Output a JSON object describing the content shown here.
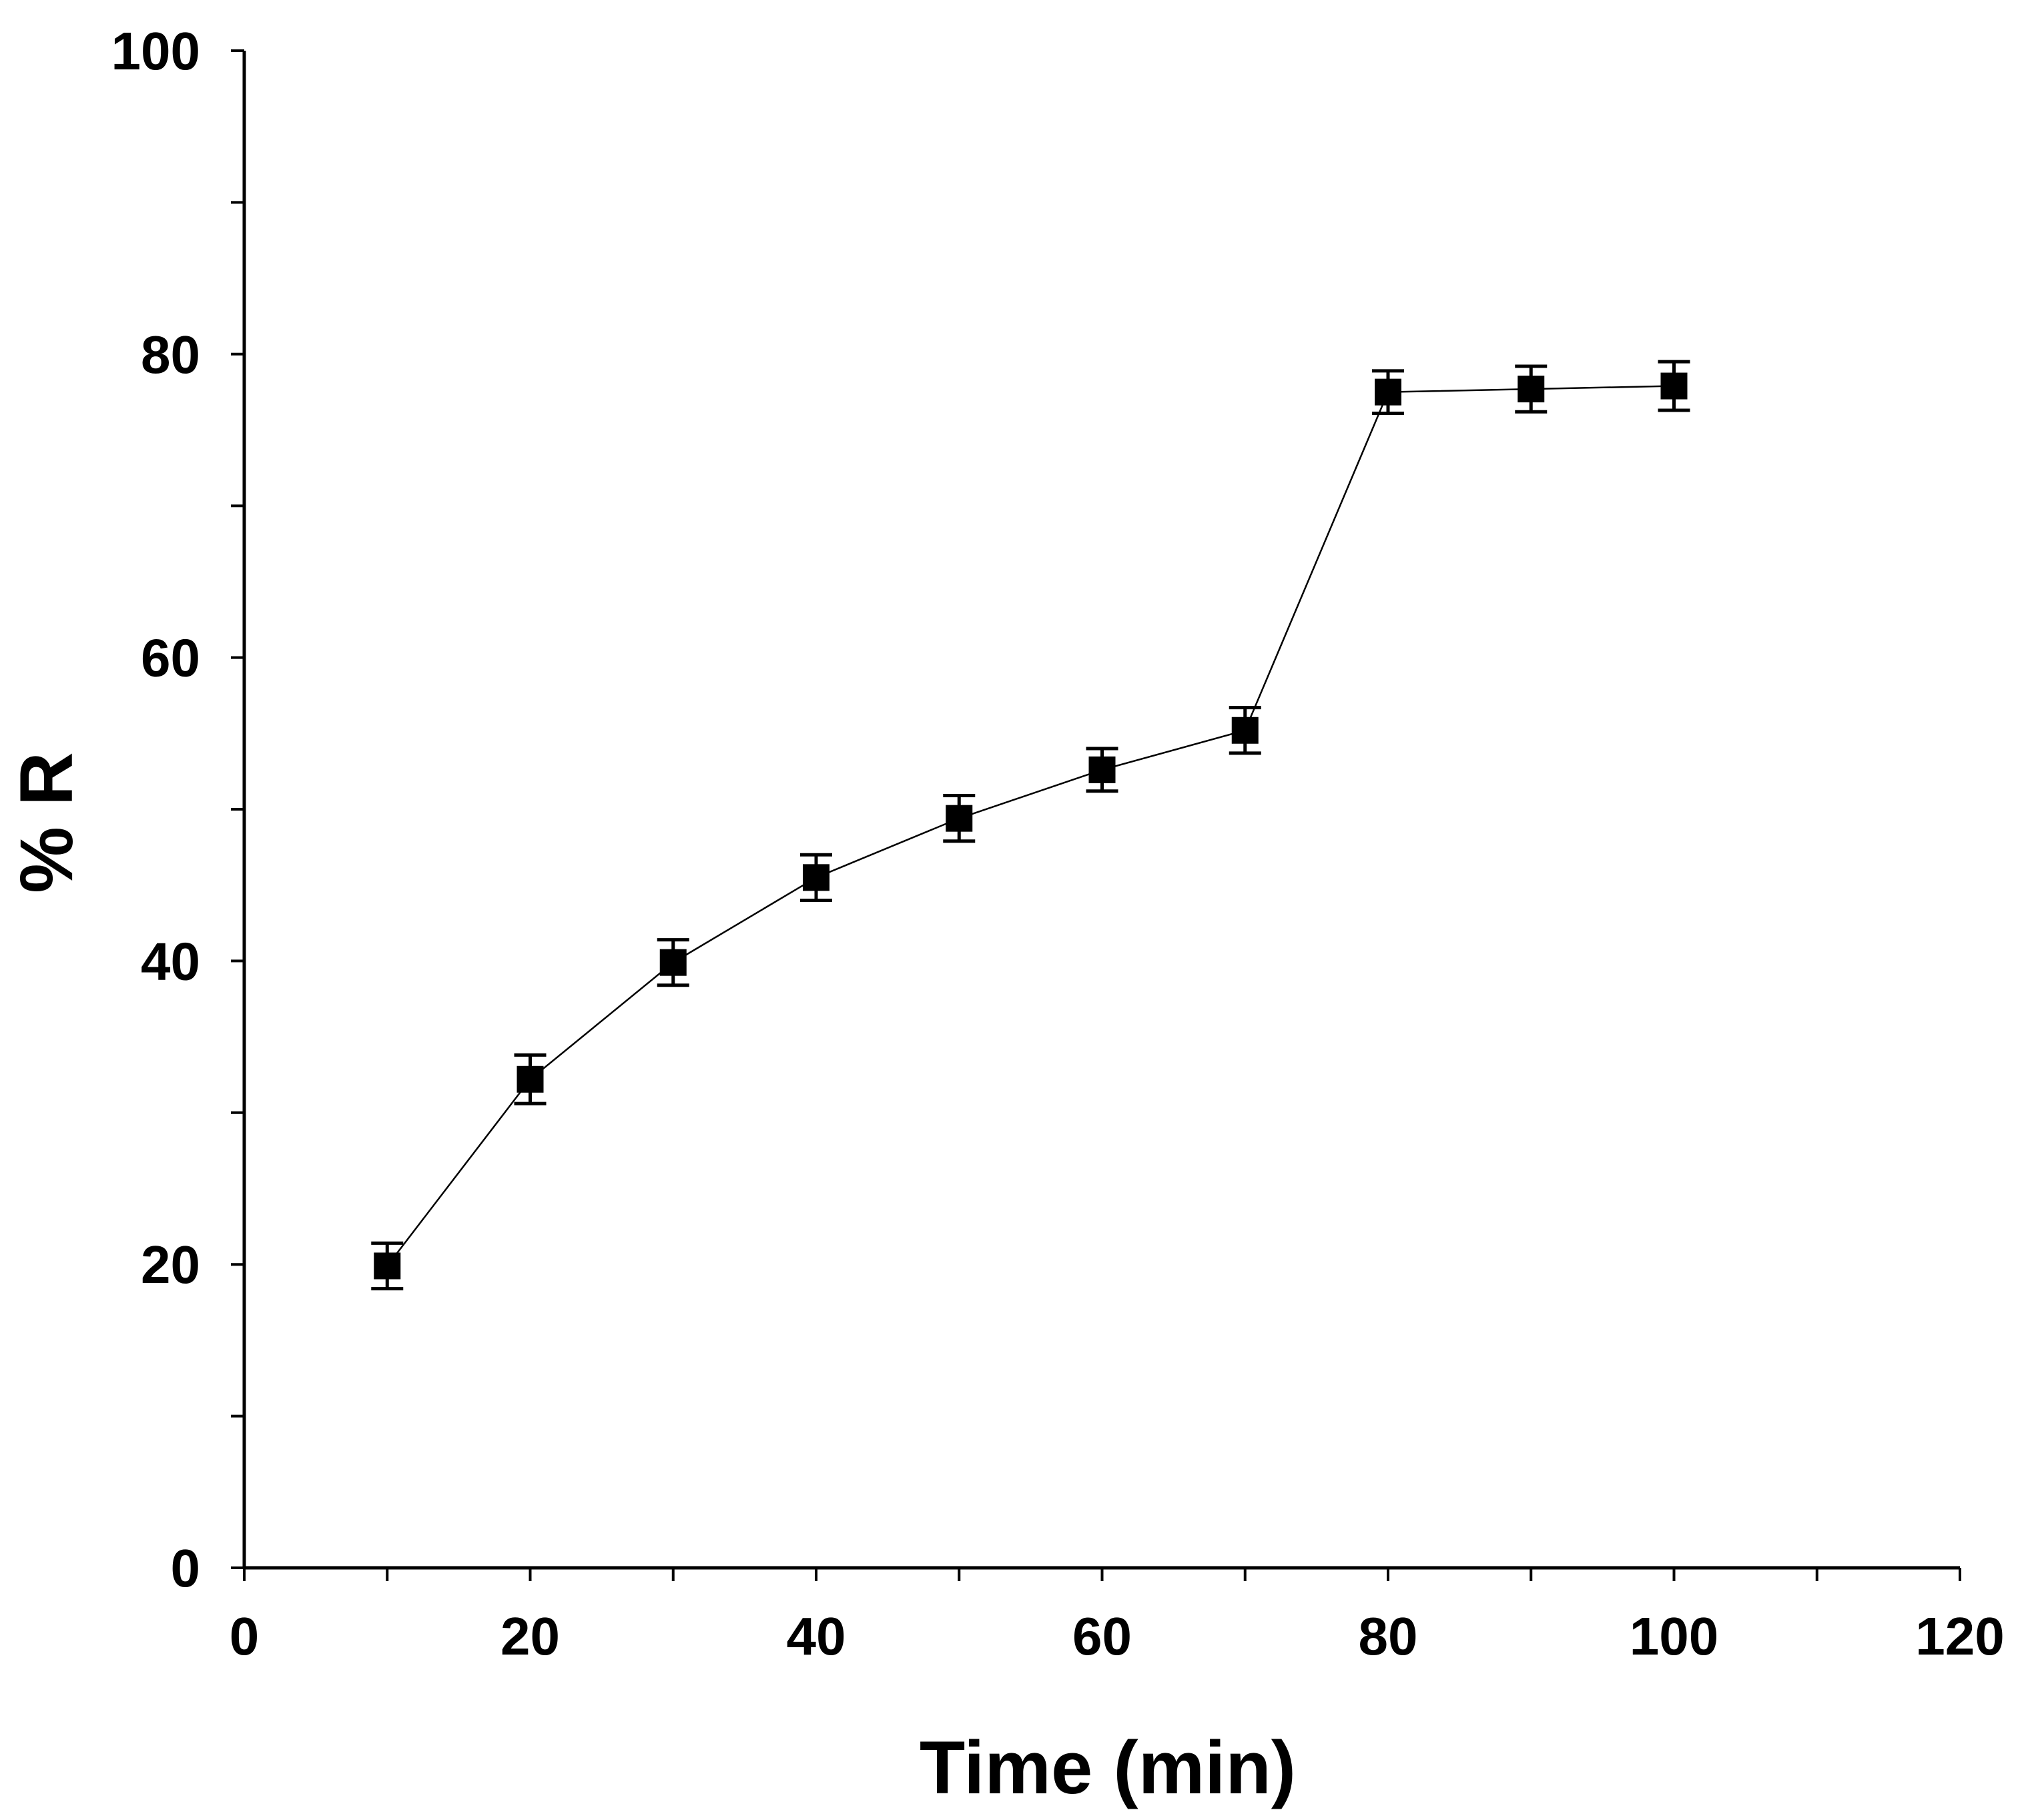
{
  "chart_data": {
    "type": "line",
    "title": "",
    "xlabel": "Time (min)",
    "ylabel": "% R",
    "xlim": [
      0,
      120
    ],
    "ylim": [
      0,
      100
    ],
    "x_ticks": [
      0,
      20,
      40,
      60,
      80,
      100,
      120
    ],
    "y_ticks": [
      0,
      20,
      40,
      60,
      80,
      100
    ],
    "x_tick_labels": [
      "0",
      "20",
      "40",
      "60",
      "80",
      "100",
      "120"
    ],
    "y_tick_labels": [
      "0",
      "20",
      "40",
      "60",
      "80",
      "100"
    ],
    "grid": false,
    "legend": "none",
    "marker": "square",
    "series": [
      {
        "name": "% R",
        "x": [
          10,
          20,
          30,
          40,
          50,
          60,
          70,
          80,
          90,
          100
        ],
        "values": [
          19.9,
          32.2,
          39.9,
          45.5,
          49.4,
          52.6,
          55.2,
          77.5,
          77.7,
          77.9
        ],
        "error": [
          1.5,
          1.6,
          1.5,
          1.5,
          1.5,
          1.4,
          1.5,
          1.4,
          1.5,
          1.6
        ]
      }
    ],
    "colors": {
      "line": "#000000",
      "marker": "#000000",
      "axis": "#000000",
      "background": "#ffffff"
    }
  }
}
